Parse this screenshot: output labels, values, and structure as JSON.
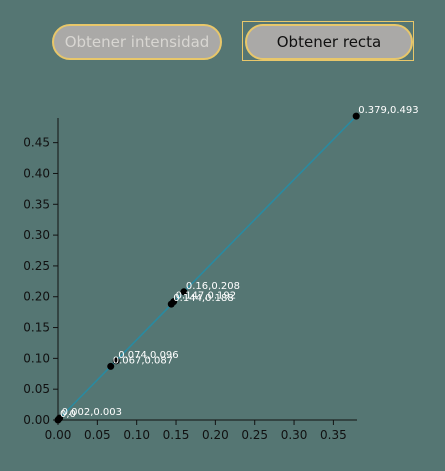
{
  "buttons": {
    "intensity_label": "Obtener intensidad",
    "recta_label": "Obtener recta"
  },
  "colors": {
    "background": "#557673",
    "line": "#2a8aa0",
    "point": "#000000",
    "button_border": "#e8c76a"
  },
  "chart_data": {
    "type": "scatter",
    "title": "",
    "xlabel": "",
    "ylabel": "",
    "xlim": [
      0,
      0.38
    ],
    "ylim": [
      0,
      0.49
    ],
    "x_ticks": [
      0.0,
      0.05,
      0.1,
      0.15,
      0.2,
      0.25,
      0.3,
      0.35
    ],
    "x_tick_labels": [
      "0.00",
      "0.05",
      "0.10",
      "0.15",
      "0.20",
      "0.25",
      "0.30",
      "0.35"
    ],
    "y_ticks": [
      0.0,
      0.05,
      0.1,
      0.15,
      0.2,
      0.25,
      0.3,
      0.35,
      0.4,
      0.45
    ],
    "y_tick_labels": [
      "0.00",
      "0.05",
      "0.10",
      "0.15",
      "0.20",
      "0.25",
      "0.30",
      "0.35",
      "0.40",
      "0.45"
    ],
    "points": [
      {
        "x": 0.0,
        "y": 0.0,
        "label": "0,0"
      },
      {
        "x": 0.002,
        "y": 0.003,
        "label": "0.002,0.003"
      },
      {
        "x": 0.067,
        "y": 0.087,
        "label": "0.067,0.087"
      },
      {
        "x": 0.074,
        "y": 0.096,
        "label": "0.074,0.096"
      },
      {
        "x": 0.144,
        "y": 0.188,
        "label": "0.144,0.188"
      },
      {
        "x": 0.147,
        "y": 0.192,
        "label": "0.147,0.192"
      },
      {
        "x": 0.16,
        "y": 0.208,
        "label": "0.16,0.208"
      },
      {
        "x": 0.379,
        "y": 0.493,
        "label": "0.379,0.493"
      }
    ],
    "fit_line": {
      "x": [
        0,
        0.379
      ],
      "y": [
        0,
        0.493
      ]
    }
  }
}
